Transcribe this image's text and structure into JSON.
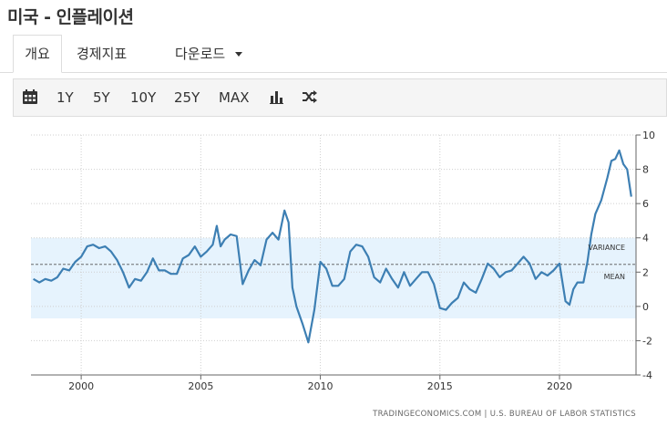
{
  "page": {
    "title": "미국 - 인플레이션"
  },
  "tabs": [
    {
      "label": "개요",
      "active": true
    },
    {
      "label": "경제지표",
      "active": false
    },
    {
      "label": "다운로드",
      "active": false
    }
  ],
  "toolbar": {
    "calendar_icon": "calendar-icon",
    "ranges": [
      "1Y",
      "5Y",
      "10Y",
      "25Y",
      "MAX"
    ],
    "bar_icon": "bar-chart-icon",
    "shuffle_icon": "shuffle-icon"
  },
  "chart_data": {
    "type": "line",
    "title": "",
    "xlabel": "",
    "ylabel": "",
    "xlim": [
      1997.9,
      2023.2
    ],
    "ylim": [
      -4,
      10
    ],
    "yticks": [
      "10",
      "8",
      "6",
      "4",
      "2",
      "0",
      "-2",
      "-4"
    ],
    "xticks": [
      "2000",
      "2005",
      "2010",
      "2015",
      "2020"
    ],
    "grid": true,
    "line_color": "#3d7fb3",
    "band_color": "#e6f3fd",
    "variance_band": [
      -0.7,
      4.0
    ],
    "mean": 2.45,
    "variance_label": "VARIANCE",
    "mean_label": "MEAN",
    "source_text": "TRADINGECONOMICS.COM  |  U.S. BUREAU OF LABOR STATISTICS",
    "series": [
      {
        "x": [
          1998.0,
          1998.25,
          1998.5,
          1998.75,
          1999.0,
          1999.25,
          1999.5,
          1999.75,
          2000.0,
          2000.25,
          2000.5,
          2000.75,
          2001.0,
          2001.25,
          2001.5,
          2001.75,
          2002.0,
          2002.25,
          2002.5,
          2002.75,
          2003.0,
          2003.25,
          2003.5,
          2003.75,
          2004.0,
          2004.25,
          2004.5,
          2004.75,
          2005.0,
          2005.25,
          2005.5,
          2005.67,
          2005.83,
          2006.0,
          2006.25,
          2006.5,
          2006.75,
          2007.0,
          2007.25,
          2007.5,
          2007.75,
          2008.0,
          2008.25,
          2008.5,
          2008.67,
          2008.83,
          2009.0,
          2009.25,
          2009.5,
          2009.75,
          2010.0,
          2010.25,
          2010.5,
          2010.75,
          2011.0,
          2011.25,
          2011.5,
          2011.75,
          2012.0,
          2012.25,
          2012.5,
          2012.75,
          2013.0,
          2013.25,
          2013.5,
          2013.75,
          2014.0,
          2014.25,
          2014.5,
          2014.75,
          2015.0,
          2015.25,
          2015.5,
          2015.75,
          2016.0,
          2016.25,
          2016.5,
          2016.75,
          2017.0,
          2017.25,
          2017.5,
          2017.75,
          2018.0,
          2018.25,
          2018.5,
          2018.75,
          2019.0,
          2019.25,
          2019.5,
          2019.75,
          2020.0,
          2020.25,
          2020.42,
          2020.58,
          2020.75,
          2021.0,
          2021.17,
          2021.33,
          2021.5,
          2021.75,
          2022.0,
          2022.17,
          2022.33,
          2022.5,
          2022.67,
          2022.83,
          2023.0
        ],
        "y": [
          1.6,
          1.4,
          1.6,
          1.5,
          1.7,
          2.2,
          2.1,
          2.6,
          2.9,
          3.5,
          3.6,
          3.4,
          3.5,
          3.2,
          2.7,
          2.0,
          1.1,
          1.6,
          1.5,
          2.0,
          2.8,
          2.1,
          2.1,
          1.9,
          1.9,
          2.8,
          3.0,
          3.5,
          2.9,
          3.2,
          3.6,
          4.7,
          3.5,
          3.9,
          4.2,
          4.1,
          1.3,
          2.1,
          2.7,
          2.4,
          3.9,
          4.3,
          3.9,
          5.6,
          4.9,
          1.1,
          0.0,
          -1.0,
          -2.1,
          -0.2,
          2.6,
          2.2,
          1.2,
          1.2,
          1.6,
          3.2,
          3.6,
          3.5,
          2.9,
          1.7,
          1.4,
          2.2,
          1.6,
          1.1,
          2.0,
          1.2,
          1.6,
          2.0,
          2.0,
          1.3,
          -0.1,
          -0.2,
          0.2,
          0.5,
          1.4,
          1.0,
          0.8,
          1.6,
          2.5,
          2.2,
          1.7,
          2.0,
          2.1,
          2.5,
          2.9,
          2.5,
          1.6,
          2.0,
          1.8,
          2.1,
          2.5,
          0.3,
          0.1,
          1.0,
          1.4,
          1.4,
          2.6,
          4.2,
          5.4,
          6.2,
          7.5,
          8.5,
          8.6,
          9.1,
          8.3,
          8.0,
          6.4
        ]
      }
    ]
  }
}
